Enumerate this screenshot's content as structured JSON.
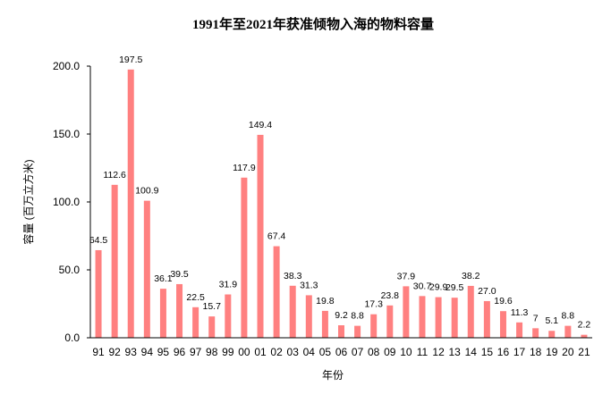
{
  "chart_data": {
    "type": "bar",
    "title": "1991年至2021年获准倾物入海的物料容量",
    "xlabel": "年份",
    "ylabel": "容量 (百万立方米)",
    "ylim": [
      0,
      200
    ],
    "yticks": [
      "0.0",
      "50.0",
      "100.0",
      "150.0",
      "200.0"
    ],
    "grid": false,
    "legend": "none",
    "color": "#FF8080",
    "categories": [
      "91",
      "92",
      "93",
      "94",
      "95",
      "96",
      "97",
      "98",
      "99",
      "00",
      "01",
      "02",
      "03",
      "04",
      "05",
      "06",
      "07",
      "08",
      "09",
      "10",
      "11",
      "12",
      "13",
      "14",
      "15",
      "16",
      "17",
      "18",
      "19",
      "20",
      "21"
    ],
    "values": [
      64.5,
      112.6,
      197.5,
      100.9,
      36.1,
      39.5,
      22.5,
      15.7,
      31.9,
      117.9,
      149.4,
      67.4,
      38.3,
      31.3,
      19.8,
      9.2,
      8.8,
      17.3,
      23.8,
      37.9,
      30.7,
      29.9,
      29.5,
      38.2,
      27.0,
      19.6,
      11.3,
      7,
      5.1,
      8.8,
      2.2
    ],
    "data_labels": [
      "64.5",
      "112.6",
      "197.5",
      "100.9",
      "36.1",
      "39.5",
      "22.5",
      "15.7",
      "31.9",
      "117.9",
      "149.4",
      "67.4",
      "38.3",
      "31.3",
      "19.8",
      "9.2",
      "8.8",
      "17.3",
      "23.8",
      "37.9",
      "30.7",
      "29.9",
      "29.5",
      "38.2",
      "27.0",
      "19.6",
      "11.3",
      "7",
      "5.1",
      "8.8",
      "2.2"
    ]
  }
}
